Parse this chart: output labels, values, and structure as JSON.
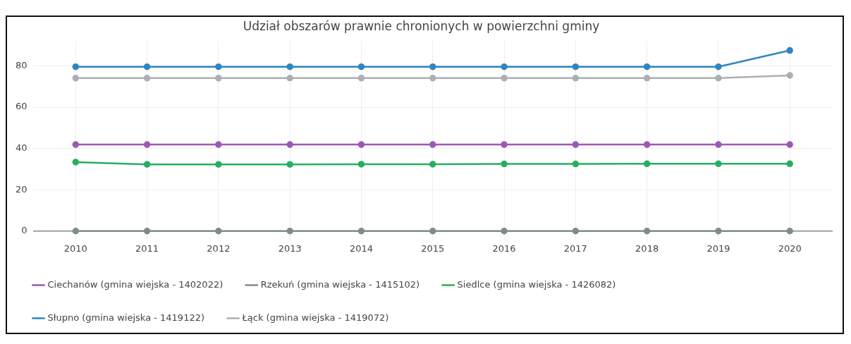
{
  "chart_data": {
    "type": "line",
    "title": "Udział obszarów prawnie chronionych w powierzchni gminy",
    "x": [
      2010,
      2011,
      2012,
      2013,
      2014,
      2015,
      2016,
      2017,
      2018,
      2019,
      2020
    ],
    "xlim": [
      2009.4,
      2020.6
    ],
    "xticks": [
      2010,
      2011,
      2012,
      2013,
      2014,
      2015,
      2016,
      2017,
      2018,
      2019,
      2020
    ],
    "ylim": [
      -5,
      92
    ],
    "yticks": [
      0,
      20,
      40,
      60,
      80
    ],
    "grid": true,
    "legend": "bottom",
    "marker": "circle",
    "line_style": "solid",
    "series": [
      {
        "name": "Ciechanów (gmina wiejska - 1402022)",
        "color": "#9b59b6",
        "values": [
          41.9,
          41.9,
          41.9,
          41.9,
          41.9,
          41.9,
          41.9,
          41.9,
          41.9,
          41.9,
          41.9
        ]
      },
      {
        "name": "Rzekuń (gmina wiejska - 1415102)",
        "color": "#7f8c8d",
        "values": [
          0,
          0,
          0,
          0,
          0,
          0,
          0,
          0,
          0,
          0,
          0
        ]
      },
      {
        "name": "Siedlce (gmina wiejska - 1426082)",
        "color": "#27ae60",
        "values": [
          33.4,
          32.3,
          32.3,
          32.3,
          32.4,
          32.4,
          32.5,
          32.5,
          32.6,
          32.6,
          32.6
        ]
      },
      {
        "name": "Słupno (gmina wiejska - 1419122)",
        "color": "#2e86c1",
        "values": [
          79.6,
          79.6,
          79.6,
          79.6,
          79.6,
          79.6,
          79.6,
          79.6,
          79.6,
          79.6,
          87.5
        ]
      },
      {
        "name": "Łąck (gmina wiejska - 1419072)",
        "color": "#aab0b4",
        "values": [
          74.1,
          74.1,
          74.1,
          74.1,
          74.1,
          74.1,
          74.1,
          74.1,
          74.1,
          74.1,
          75.4
        ]
      }
    ]
  }
}
